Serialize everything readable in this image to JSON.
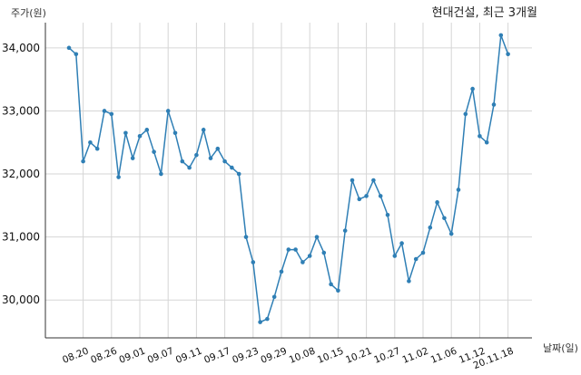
{
  "chart_data": {
    "type": "line",
    "title": "현대건설, 최근 3개월",
    "xlabel": "날짜(일)",
    "ylabel": "주가(원)",
    "ylim": [
      29400,
      34400
    ],
    "yticks": [
      30000,
      31000,
      32000,
      33000,
      34000
    ],
    "ytick_labels": [
      "30,000",
      "31,000",
      "32,000",
      "33,000",
      "34,000"
    ],
    "xtick_labels": [
      "08.20",
      "08.26",
      "09.01",
      "09.07",
      "09.11",
      "09.17",
      "09.23",
      "09.29",
      "10.08",
      "10.15",
      "10.21",
      "10.27",
      "11.02",
      "11.06",
      "11.12",
      "20.11.18"
    ],
    "xtick_indices": [
      2,
      6,
      10,
      14,
      18,
      22,
      26,
      30,
      34,
      38,
      42,
      46,
      50,
      54,
      58,
      62
    ],
    "grid": true,
    "color": "#2f7fb5",
    "series": [
      {
        "values": [
          34000,
          33900,
          32200,
          32500,
          32400,
          33000,
          32950,
          31950,
          32650,
          32250,
          32600,
          32700,
          32350,
          32000,
          33000,
          32650,
          32200,
          32100,
          32300,
          32700,
          32250,
          32400,
          32200,
          32100,
          32000,
          31000,
          30600,
          29650,
          29700,
          30050,
          30450,
          30800,
          30800,
          30600,
          30700,
          31000,
          30750,
          30250,
          30150,
          31100,
          31900,
          31600,
          31650,
          31900,
          31650,
          31350,
          30700,
          30900,
          30300,
          30650,
          30750,
          31150,
          31550,
          31300,
          31050,
          31750,
          32950,
          33350,
          32600,
          32500,
          33100,
          34200,
          33900
        ]
      }
    ]
  }
}
